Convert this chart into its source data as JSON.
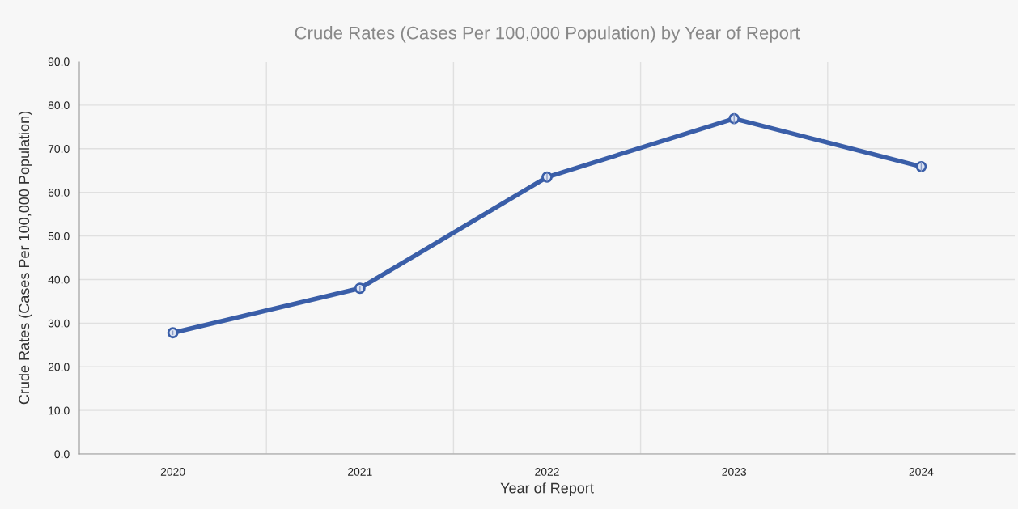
{
  "chart_data": {
    "type": "line",
    "title": "Crude Rates (Cases Per 100,000 Population) by Year of Report",
    "xlabel": "Year of Report",
    "ylabel": "Crude Rates (Cases Per 100,000 Population)",
    "categories": [
      "2020",
      "2021",
      "2022",
      "2023",
      "2024"
    ],
    "series": [
      {
        "color": "#3a5ea8",
        "values": [
          27.8,
          38.0,
          63.5,
          76.9,
          65.9
        ],
        "errors": [
          0.5,
          0.6,
          1.0,
          1.2,
          1.1
        ]
      }
    ],
    "ylim": [
      0,
      90
    ],
    "yticks": [
      {
        "value": 0,
        "label": "0.0"
      },
      {
        "value": 10,
        "label": "10.0"
      },
      {
        "value": 20,
        "label": "20.0"
      },
      {
        "value": 30,
        "label": "30.0"
      },
      {
        "value": 40,
        "label": "40.0"
      },
      {
        "value": 50,
        "label": "50.0"
      },
      {
        "value": 60,
        "label": "60.0"
      },
      {
        "value": 70,
        "label": "70.0"
      },
      {
        "value": 80,
        "label": "80.0"
      },
      {
        "value": 90,
        "label": "90.0"
      }
    ],
    "grid": true,
    "marker": "circle",
    "line_style": "solid"
  }
}
